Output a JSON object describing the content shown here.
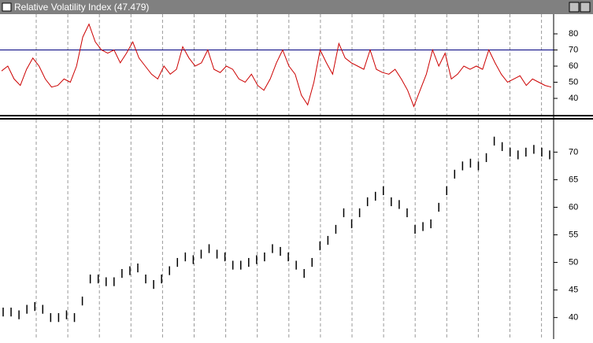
{
  "chart_data": [
    {
      "type": "line",
      "title": "Relative Volatility Index (47.479)",
      "color": "#cc0000",
      "hline": 70,
      "hline_color": "#000080",
      "ylim": [
        29.3,
        92.2
      ],
      "yticks": [
        40,
        50,
        60,
        70,
        80
      ],
      "values": [
        57,
        60,
        52,
        48,
        58,
        65,
        60,
        52,
        47,
        48,
        52,
        50,
        60,
        78,
        86,
        75,
        70,
        68,
        70,
        62,
        68,
        75,
        65,
        60,
        55,
        52,
        60,
        55,
        58,
        72,
        65,
        60,
        62,
        70,
        58,
        56,
        60,
        58,
        52,
        50,
        55,
        48,
        45,
        52,
        62,
        70,
        60,
        55,
        42,
        36,
        50,
        70,
        62,
        55,
        74,
        65,
        62,
        60,
        58,
        70,
        58,
        56,
        55,
        58,
        52,
        45,
        35,
        45,
        55,
        70,
        60,
        68,
        52,
        55,
        60,
        58,
        60,
        58,
        70,
        62,
        55,
        50,
        52,
        54,
        48,
        52,
        50,
        48,
        47
      ]
    },
    {
      "type": "range",
      "color": "#000000",
      "ylim": [
        36.1,
        75.9
      ],
      "yticks": [
        40,
        45,
        50,
        55,
        60,
        65,
        70
      ],
      "high": [
        41.8,
        41.8,
        41.3,
        42.3,
        42.8,
        42.3,
        40.8,
        40.8,
        41.3,
        40.8,
        43.8,
        47.8,
        47.8,
        47.3,
        47.3,
        48.8,
        49.3,
        49.8,
        47.8,
        46.8,
        47.8,
        49.3,
        50.8,
        51.8,
        51.3,
        52.3,
        53.3,
        52.3,
        51.8,
        50.3,
        50.3,
        50.8,
        51.3,
        51.8,
        53.3,
        52.8,
        51.8,
        50.3,
        48.8,
        50.8,
        53.8,
        54.8,
        56.8,
        59.8,
        57.8,
        59.8,
        61.8,
        62.8,
        63.8,
        61.8,
        61.3,
        59.8,
        56.8,
        57.3,
        57.8,
        60.8,
        63.8,
        66.8,
        68.3,
        68.8,
        68.3,
        69.8,
        72.8,
        71.8,
        70.8,
        70.3,
        70.8,
        71.3,
        70.8,
        70.3
      ],
      "low": [
        40.2,
        40.2,
        39.7,
        40.7,
        41.2,
        40.7,
        39.2,
        39.2,
        39.7,
        39.2,
        42.2,
        46.2,
        46.2,
        45.7,
        45.7,
        47.2,
        47.7,
        48.2,
        46.2,
        45.2,
        46.2,
        47.7,
        49.2,
        50.2,
        49.7,
        50.7,
        51.7,
        50.7,
        50.2,
        48.7,
        48.7,
        49.2,
        49.7,
        50.2,
        51.7,
        51.2,
        50.2,
        48.7,
        47.2,
        49.2,
        52.2,
        53.2,
        55.2,
        58.2,
        56.2,
        58.2,
        60.2,
        61.2,
        62.2,
        60.2,
        59.7,
        58.2,
        55.2,
        55.7,
        56.2,
        59.2,
        62.2,
        65.2,
        66.7,
        67.2,
        66.7,
        68.2,
        71.2,
        70.2,
        69.2,
        68.7,
        69.2,
        69.7,
        69.2,
        68.7
      ]
    }
  ]
}
